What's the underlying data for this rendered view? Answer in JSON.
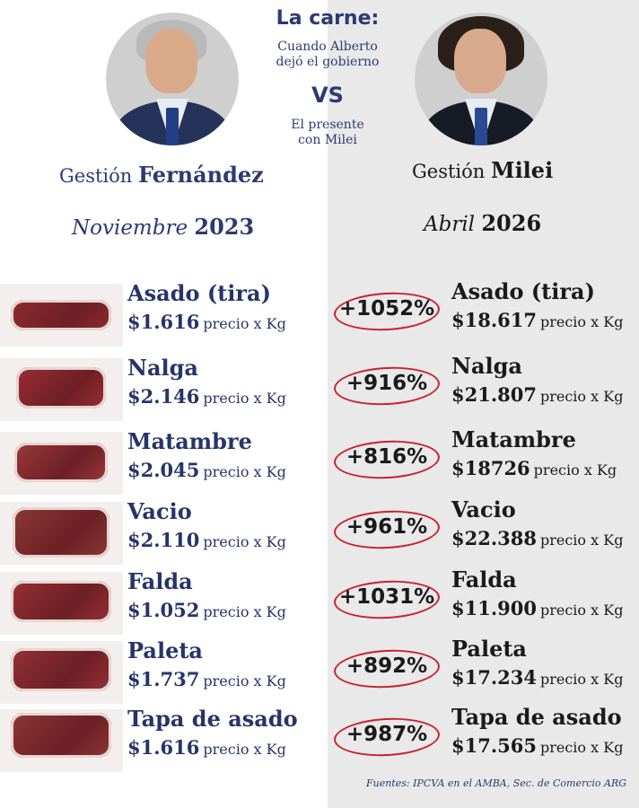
{
  "header": {
    "title": "La carne:",
    "subtitle_top": [
      "Cuando Alberto",
      "dejó el gobierno"
    ],
    "vs": "VS",
    "subtitle_bottom": [
      "El presente",
      "con Milei"
    ]
  },
  "left": {
    "gestion_prefix": "Gestión",
    "gestion_name": "Fernández",
    "month": "Noviembre",
    "year": "2023"
  },
  "right": {
    "gestion_prefix": "Gestión",
    "gestion_name": "Milei",
    "month": "Abril",
    "year": "2026"
  },
  "unit_label": "precio x Kg",
  "rows": [
    {
      "name": "Asado (tira)",
      "price_2023": "$1.616",
      "change": "+1052%",
      "price_2026": "$18.617"
    },
    {
      "name": "Nalga",
      "price_2023": "$2.146",
      "change": "+916%",
      "price_2026": "$21.807"
    },
    {
      "name": "Matambre",
      "price_2023": "$2.045",
      "change": "+816%",
      "price_2026": "$18726"
    },
    {
      "name": "Vacio",
      "price_2023": "$2.110",
      "change": "+961%",
      "price_2026": "$22.388"
    },
    {
      "name": "Falda",
      "price_2023": "$1.052",
      "change": "+1031%",
      "price_2026": "$11.900"
    },
    {
      "name": "Paleta",
      "price_2023": "$1.737",
      "change": "+892%",
      "price_2026": "$17.234"
    },
    {
      "name": "Tapa de asado",
      "price_2023": "$1.616",
      "change": "+987%",
      "price_2026": "$17.565"
    }
  ],
  "source": "Fuentes: IPCVA en el AMBA, Sec. de Comercio ARG",
  "colors": {
    "accent_navy": "#27346a",
    "ring_red": "#c8232c",
    "right_bg": "#e9e9e9"
  },
  "icons": [
    "person-portrait-left",
    "person-portrait-right",
    "meat-cut-photo"
  ]
}
